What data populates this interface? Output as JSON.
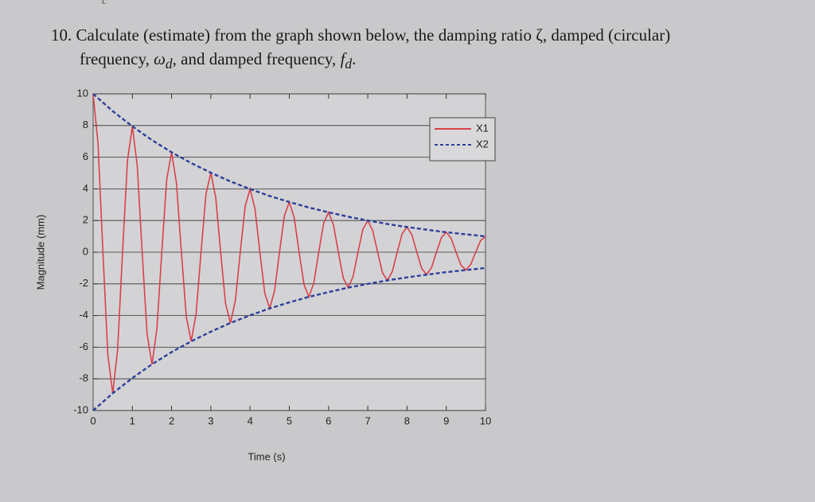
{
  "header": {
    "mark": "c"
  },
  "question": {
    "number": "10.",
    "line1": "Calculate (estimate) from the graph shown below, the damping ratio ζ, damped (circular)",
    "line2_parts": [
      "frequency, ",
      "ω",
      "d",
      ", and damped frequency, ",
      "f",
      "d",
      "."
    ]
  },
  "chart_data": {
    "type": "line",
    "xlabel": "Time (s)",
    "ylabel": "Magnitude (mm)",
    "xlim": [
      0,
      10
    ],
    "ylim": [
      -10,
      10
    ],
    "xticks": [
      0,
      1,
      2,
      3,
      4,
      5,
      6,
      7,
      8,
      9,
      10
    ],
    "yticks": [
      -10,
      -8,
      -6,
      -4,
      -2,
      0,
      2,
      4,
      6,
      8,
      10
    ],
    "grid": "y",
    "legend": "upper right",
    "series": [
      {
        "name": "X1",
        "color": "#d9404a",
        "dash": "solid",
        "x": [
          0,
          0.125,
          0.25,
          0.375,
          0.5,
          0.625,
          0.75,
          0.875,
          1,
          1.125,
          1.25,
          1.375,
          1.5,
          1.625,
          1.75,
          1.875,
          2,
          2.125,
          2.25,
          2.375,
          2.5,
          2.625,
          2.75,
          2.875,
          3,
          3.125,
          3.25,
          3.375,
          3.5,
          3.625,
          3.75,
          3.875,
          4,
          4.125,
          4.25,
          4.375,
          4.5,
          4.625,
          4.75,
          4.875,
          5,
          5.125,
          5.25,
          5.375,
          5.5,
          5.625,
          5.75,
          5.875,
          6,
          6.125,
          6.25,
          6.375,
          6.5,
          6.625,
          6.75,
          6.875,
          7,
          7.125,
          7.25,
          7.375,
          7.5,
          7.625,
          7.75,
          7.875,
          8,
          8.125,
          8.25,
          8.375,
          8.5,
          8.625,
          8.75,
          8.875,
          9,
          9.125,
          9.25,
          9.375,
          9.5,
          9.625,
          9.75,
          9.875,
          10
        ],
        "values": [
          10,
          6.87,
          0,
          -6.49,
          -8.91,
          -6.13,
          0,
          5.78,
          7.95,
          5.46,
          0,
          -5.15,
          -7.08,
          -4.87,
          0,
          4.59,
          6.31,
          4.34,
          0,
          -4.1,
          -5.63,
          -3.87,
          0,
          3.65,
          5.02,
          3.45,
          0,
          -3.25,
          -4.47,
          -3.07,
          0,
          2.9,
          3.99,
          2.74,
          0,
          -2.59,
          -3.55,
          -2.44,
          0,
          2.3,
          3.17,
          2.18,
          0,
          -2.05,
          -2.82,
          -1.94,
          0,
          1.83,
          2.52,
          1.73,
          0,
          -1.63,
          -2.24,
          -1.54,
          0,
          1.45,
          2,
          1.37,
          0,
          -1.3,
          -1.78,
          -1.22,
          0,
          1.16,
          1.59,
          1.09,
          0,
          -1.03,
          -1.42,
          -0.97,
          0,
          0.92,
          1.26,
          0.87,
          0,
          -0.82,
          -1.12,
          -0.77,
          0,
          0.73,
          1
        ]
      },
      {
        "name": "X2",
        "color": "#2f3f9a",
        "dash": "dashed",
        "x": [
          0,
          0.5,
          1,
          1.5,
          2,
          2.5,
          3,
          3.5,
          4,
          4.5,
          5,
          5.5,
          6,
          6.5,
          7,
          7.5,
          8,
          8.5,
          9,
          9.5,
          10
        ],
        "values": [
          10,
          8.91,
          7.95,
          7.08,
          6.31,
          5.63,
          5.02,
          4.47,
          3.99,
          3.55,
          3.17,
          2.82,
          2.52,
          2.24,
          2,
          1.78,
          1.59,
          1.42,
          1.26,
          1.13,
          1
        ]
      },
      {
        "name": "X2",
        "color": "#2f3f9a",
        "dash": "dashed",
        "x": [
          0,
          0.5,
          1,
          1.5,
          2,
          2.5,
          3,
          3.5,
          4,
          4.5,
          5,
          5.5,
          6,
          6.5,
          7,
          7.5,
          8,
          8.5,
          9,
          9.5,
          10
        ],
        "values": [
          -10,
          -8.91,
          -7.95,
          -7.08,
          -6.31,
          -5.63,
          -5.02,
          -4.47,
          -3.99,
          -3.55,
          -3.17,
          -2.82,
          -2.52,
          -2.24,
          -2,
          -1.78,
          -1.59,
          -1.42,
          -1.26,
          -1.13,
          -1
        ]
      }
    ]
  }
}
